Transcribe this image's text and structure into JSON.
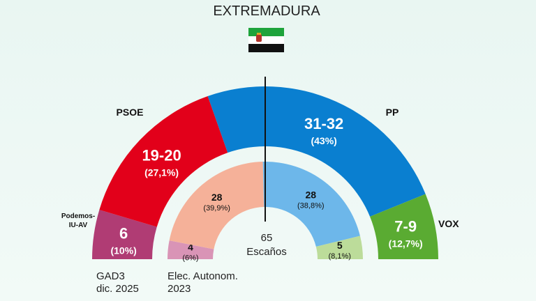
{
  "title": "EXTREMADURA",
  "colors": {
    "psoe": "#e2001a",
    "pp": "#0a7fd0",
    "vox": "#5aab32",
    "podemos": "#b03c74",
    "psoe_2023": "#f5b199",
    "pp_2023": "#6db7ea",
    "vox_2023": "#bcdc9a",
    "podemos_2023": "#d994b6",
    "flag_green": "#1ea33b",
    "flag_white": "#ffffff",
    "flag_black": "#111111"
  },
  "center_label": {
    "seats": "65",
    "word": "Escaños"
  },
  "chart_data": [
    {
      "type": "pie",
      "source_label": [
        "GAD3",
        "dic. 2025"
      ],
      "total_seats": 65,
      "series": [
        {
          "name": "Podemos-IU-AV",
          "seats_label": "6",
          "pct_label": "(10%)",
          "seats": 6
        },
        {
          "name": "PSOE",
          "seats_label": "19-20",
          "pct_label": "(27,1%)",
          "seats": 19.5
        },
        {
          "name": "PP",
          "seats_label": "31-32",
          "pct_label": "(43%)",
          "seats": 31.5
        },
        {
          "name": "VOX",
          "seats_label": "7-9",
          "pct_label": "(12,7%)",
          "seats": 8
        }
      ]
    },
    {
      "type": "pie",
      "source_label": [
        "Elec. Autonom.",
        "2023"
      ],
      "total_seats": 65,
      "series": [
        {
          "name": "Podemos-IU-AV",
          "seats_label": "4",
          "pct_label": "(6%)",
          "seats": 4
        },
        {
          "name": "PSOE",
          "seats_label": "28",
          "pct_label": "(39,9%)",
          "seats": 28
        },
        {
          "name": "PP",
          "seats_label": "28",
          "pct_label": "(38,8%)",
          "seats": 28
        },
        {
          "name": "VOX",
          "seats_label": "5",
          "pct_label": "(8,1%)",
          "seats": 5
        }
      ]
    }
  ]
}
